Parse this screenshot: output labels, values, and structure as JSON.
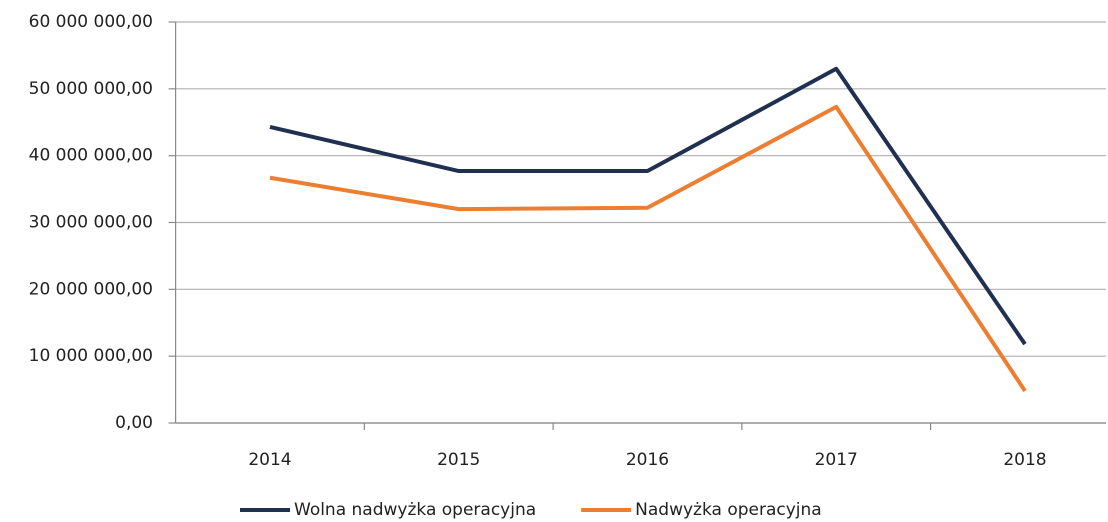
{
  "chart_data": {
    "type": "line",
    "categories": [
      "2014",
      "2015",
      "2016",
      "2017",
      "2018"
    ],
    "series": [
      {
        "name": "Wolna nadwyżka operacyjna",
        "color": "#1f3050",
        "values": [
          44300000,
          37700000,
          37700000,
          53000000,
          11800000
        ]
      },
      {
        "name": "Nadwyżka operacyjna",
        "color": "#ed7d31",
        "values": [
          36700000,
          32000000,
          32200000,
          47300000,
          4800000
        ]
      }
    ],
    "ylim": [
      0,
      60000000
    ],
    "yticks": [
      {
        "value": 0,
        "label": "0,00"
      },
      {
        "value": 10000000,
        "label": "10 000 000,00"
      },
      {
        "value": 20000000,
        "label": "20 000 000,00"
      },
      {
        "value": 30000000,
        "label": "30 000 000,00"
      },
      {
        "value": 40000000,
        "label": "40 000 000,00"
      },
      {
        "value": 50000000,
        "label": "50 000 000,00"
      },
      {
        "value": 60000000,
        "label": "60 000 000,00"
      }
    ],
    "grid": true,
    "legend": "bottom"
  }
}
